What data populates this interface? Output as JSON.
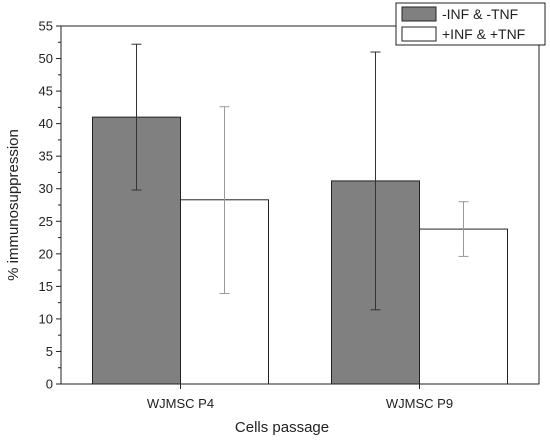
{
  "chart_data": {
    "type": "bar",
    "categories": [
      "WJMSC P4",
      "WJMSC P9"
    ],
    "series": [
      {
        "name": "-INF & -TNF",
        "values": [
          41,
          31.2
        ],
        "error_low": [
          29.8,
          11.4
        ],
        "error_high": [
          52.2,
          51
        ],
        "color": "#808080"
      },
      {
        "name": "+INF & +TNF",
        "values": [
          28.3,
          23.8
        ],
        "error_low": [
          13.9,
          19.6
        ],
        "error_high": [
          42.6,
          28
        ],
        "color": "#ffffff"
      }
    ],
    "xlabel": "Cells passage",
    "ylabel": "% immunosuppression",
    "ylim": [
      0,
      55
    ],
    "yticks": [
      0,
      5,
      10,
      15,
      20,
      25,
      30,
      35,
      40,
      45,
      50,
      55
    ],
    "grid": false,
    "legend_position": "top-right"
  }
}
